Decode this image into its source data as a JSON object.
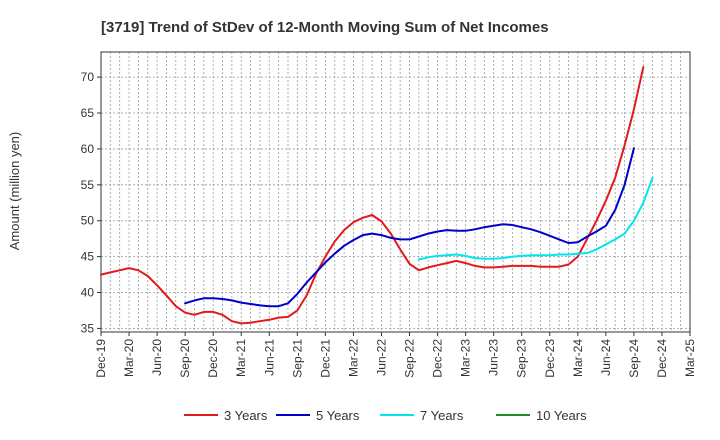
{
  "chart_data": {
    "type": "line",
    "title": "[3719]  Trend of StDev of 12-Month Moving Sum of Net Incomes",
    "xlabel": "",
    "ylabel": "Amount (million yen)",
    "ylim": [
      34.5,
      73.5
    ],
    "yticks": [
      35,
      40,
      45,
      50,
      55,
      60,
      65,
      70
    ],
    "xticks": [
      "Dec-19",
      "Mar-20",
      "Jun-20",
      "Sep-20",
      "Dec-20",
      "Mar-21",
      "Jun-21",
      "Sep-21",
      "Dec-21",
      "Mar-22",
      "Jun-22",
      "Sep-22",
      "Dec-22",
      "Mar-23",
      "Jun-23",
      "Sep-23",
      "Dec-23",
      "Mar-24",
      "Jun-24",
      "Sep-24",
      "Dec-24",
      "Mar-25"
    ],
    "grid": true,
    "legend_position": "bottom",
    "series": [
      {
        "name": "3 Years",
        "color": "#e31a1c",
        "start_index": 0,
        "values": [
          42.5,
          42.8,
          43.1,
          43.4,
          43.1,
          42.3,
          41.0,
          39.6,
          38.1,
          37.2,
          36.9,
          37.3,
          37.3,
          36.9,
          36.0,
          35.7,
          35.8,
          36.0,
          36.2,
          36.5,
          36.6,
          37.5,
          39.6,
          42.6,
          45.0,
          47.1,
          48.7,
          49.8,
          50.4,
          50.8,
          49.9,
          48.2,
          46.0,
          44.0,
          43.1,
          43.5,
          43.8,
          44.1,
          44.4,
          44.1,
          43.7,
          43.5,
          43.5,
          43.6,
          43.7,
          43.7,
          43.7,
          43.6,
          43.6,
          43.6,
          43.9,
          45.0,
          47.5,
          50.0,
          52.8,
          56.0,
          60.5,
          65.5,
          71.4
        ]
      },
      {
        "name": "5 Years",
        "color": "#0000cc",
        "start_index": 9,
        "values": [
          38.5,
          38.9,
          39.2,
          39.2,
          39.1,
          38.9,
          38.6,
          38.4,
          38.2,
          38.1,
          38.1,
          38.5,
          39.8,
          41.4,
          42.8,
          44.2,
          45.4,
          46.5,
          47.3,
          48.0,
          48.2,
          48.0,
          47.6,
          47.4,
          47.4,
          47.8,
          48.2,
          48.5,
          48.7,
          48.6,
          48.6,
          48.8,
          49.1,
          49.3,
          49.5,
          49.4,
          49.1,
          48.8,
          48.4,
          47.9,
          47.4,
          46.9,
          47.0,
          47.8,
          48.5,
          49.3,
          51.5,
          55.0,
          60.1
        ]
      },
      {
        "name": "7 Years",
        "color": "#00e5ee",
        "start_index": 34,
        "values": [
          44.6,
          44.9,
          45.1,
          45.2,
          45.3,
          45.1,
          44.8,
          44.7,
          44.7,
          44.8,
          45.0,
          45.1,
          45.2,
          45.2,
          45.2,
          45.3,
          45.3,
          45.4,
          45.5,
          46.0,
          46.7,
          47.4,
          48.2,
          50.0,
          52.5,
          56.0
        ]
      },
      {
        "name": "10 Years",
        "color": "#228b22",
        "start_index": 0,
        "values": []
      }
    ]
  }
}
